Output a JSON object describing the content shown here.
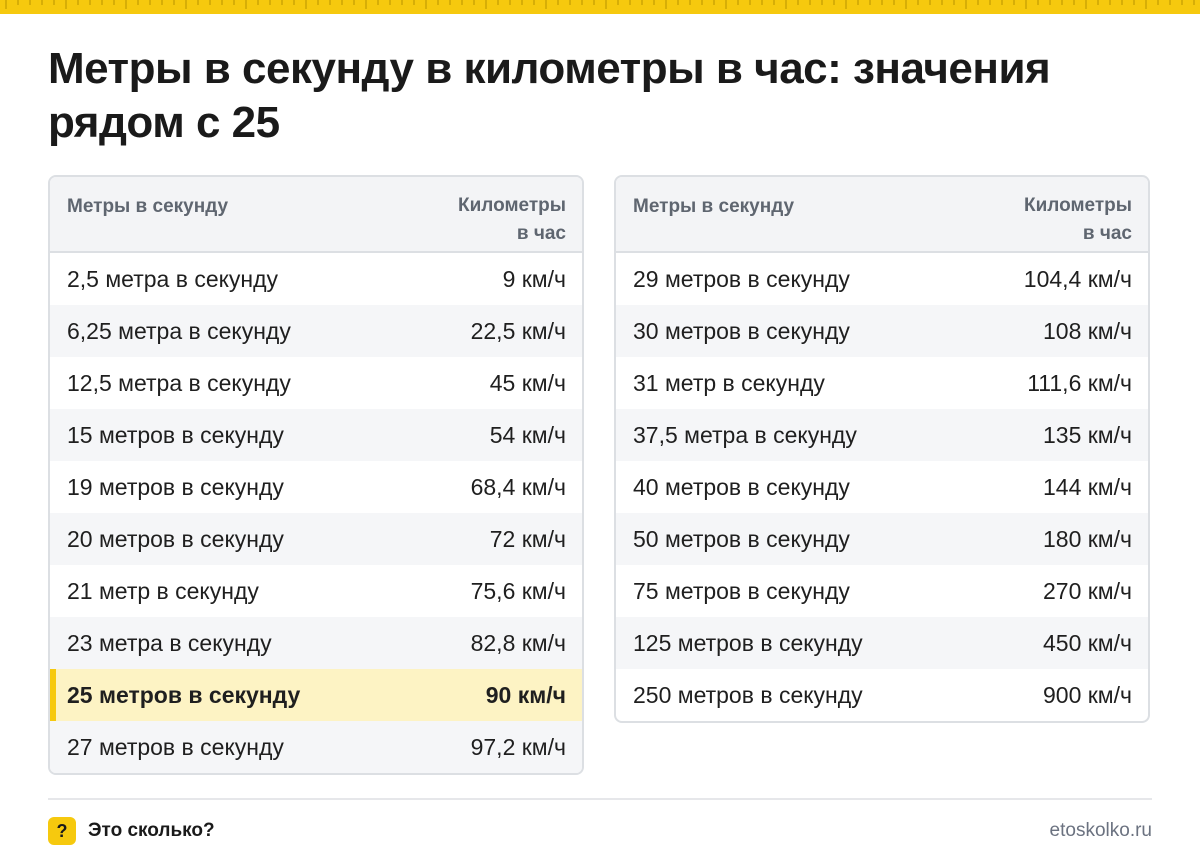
{
  "title": "Метры в секунду в километры в час: значения рядом с 25",
  "colors": {
    "accent": "#f6c90e",
    "highlight_row": "#fdf3c4",
    "header_bg": "#f3f4f6",
    "border": "#dcdfe3"
  },
  "table_left": {
    "header": {
      "col1": "Метры в секунду",
      "col2_line1": "Километры",
      "col2_line2": "в час"
    },
    "rows": [
      {
        "ms": "2,5 метра в секунду",
        "kmh": "9 км/ч"
      },
      {
        "ms": "6,25 метра в секунду",
        "kmh": "22,5 км/ч"
      },
      {
        "ms": "12,5 метра в секунду",
        "kmh": "45 км/ч"
      },
      {
        "ms": "15 метров в секунду",
        "kmh": "54 км/ч"
      },
      {
        "ms": "19 метров в секунду",
        "kmh": "68,4 км/ч"
      },
      {
        "ms": "20 метров в секунду",
        "kmh": "72 км/ч"
      },
      {
        "ms": "21 метр в секунду",
        "kmh": "75,6 км/ч"
      },
      {
        "ms": "23 метра в секунду",
        "kmh": "82,8 км/ч"
      },
      {
        "ms": "25 метров в секунду",
        "kmh": "90 км/ч",
        "highlighted": true
      },
      {
        "ms": "27 метров в секунду",
        "kmh": "97,2 км/ч"
      }
    ]
  },
  "table_right": {
    "header": {
      "col1": "Метры в секунду",
      "col2_line1": "Километры",
      "col2_line2": "в час"
    },
    "rows": [
      {
        "ms": "29 метров в секунду",
        "kmh": "104,4 км/ч"
      },
      {
        "ms": "30 метров в секунду",
        "kmh": "108 км/ч"
      },
      {
        "ms": "31 метр в секунду",
        "kmh": "111,6 км/ч"
      },
      {
        "ms": "37,5 метра в секунду",
        "kmh": "135 км/ч"
      },
      {
        "ms": "40 метров в секунду",
        "kmh": "144 км/ч"
      },
      {
        "ms": "50 метров в секунду",
        "kmh": "180 км/ч"
      },
      {
        "ms": "75 метров в секунду",
        "kmh": "270 км/ч"
      },
      {
        "ms": "125 метров в секунду",
        "kmh": "450 км/ч"
      },
      {
        "ms": "250 метров в секунду",
        "kmh": "900 км/ч"
      }
    ]
  },
  "footer": {
    "badge": "?",
    "brand": "Это сколько?",
    "site": "etoskolko.ru"
  }
}
